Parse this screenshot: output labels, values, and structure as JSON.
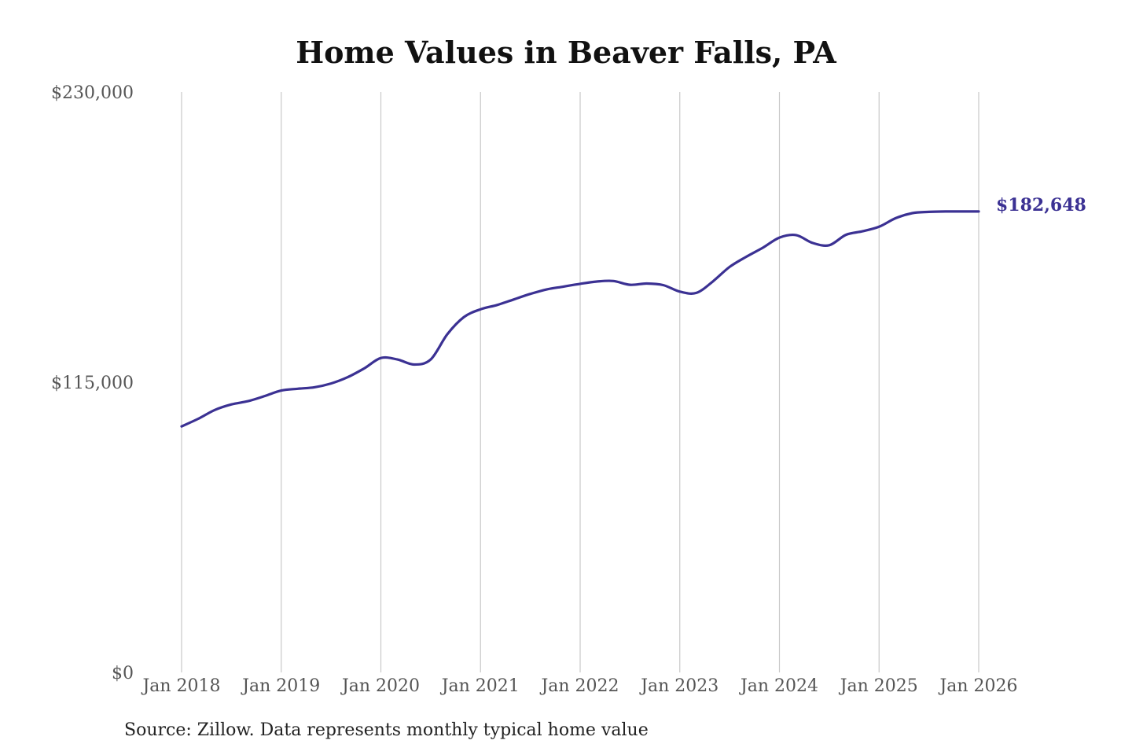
{
  "chart_data": {
    "type": "line",
    "title": "Home Values in Beaver Falls, PA",
    "xlabel": "",
    "ylabel": "",
    "ylim": [
      0,
      230000
    ],
    "y_ticks": [
      {
        "value": 0,
        "label": "$0"
      },
      {
        "value": 115000,
        "label": "$115,000"
      },
      {
        "value": 230000,
        "label": "$230,000"
      }
    ],
    "x_ticks": [
      {
        "value": 2018,
        "label": "Jan 2018"
      },
      {
        "value": 2019,
        "label": "Jan 2019"
      },
      {
        "value": 2020,
        "label": "Jan 2020"
      },
      {
        "value": 2021,
        "label": "Jan 2021"
      },
      {
        "value": 2022,
        "label": "Jan 2022"
      },
      {
        "value": 2023,
        "label": "Jan 2023"
      },
      {
        "value": 2024,
        "label": "Jan 2024"
      },
      {
        "value": 2025,
        "label": "Jan 2025"
      },
      {
        "value": 2026,
        "label": "Jan 2026"
      }
    ],
    "vertical_gridlines": true,
    "line_color": "#3b3193",
    "end_label": "$182,648",
    "series": [
      {
        "x": [
          "2018-01",
          "2018-03",
          "2018-05",
          "2018-07",
          "2018-09",
          "2018-11",
          "2019-01",
          "2019-03",
          "2019-05",
          "2019-07",
          "2019-09",
          "2019-11",
          "2020-01",
          "2020-03",
          "2020-05",
          "2020-07",
          "2020-09",
          "2020-11",
          "2021-01",
          "2021-03",
          "2021-05",
          "2021-07",
          "2021-09",
          "2021-11",
          "2022-01",
          "2022-03",
          "2022-05",
          "2022-07",
          "2022-09",
          "2022-11",
          "2023-01",
          "2023-03",
          "2023-05",
          "2023-07",
          "2023-09",
          "2023-11",
          "2024-01",
          "2024-03",
          "2024-05",
          "2024-07",
          "2024-09",
          "2024-11",
          "2025-01",
          "2025-03",
          "2025-05",
          "2025-07",
          "2025-09",
          "2025-11",
          "2026-01"
        ],
        "y": [
          97500,
          100500,
          104000,
          106200,
          107500,
          109500,
          111700,
          112400,
          113000,
          114500,
          117000,
          120500,
          124600,
          124000,
          122000,
          124000,
          134000,
          140800,
          143900,
          145600,
          147800,
          150000,
          151800,
          152900,
          154000,
          154900,
          155100,
          153600,
          154100,
          153500,
          150900,
          150400,
          155000,
          160700,
          164700,
          168300,
          172300,
          173300,
          170200,
          169300,
          173400,
          174800,
          176600,
          180000,
          182000,
          182500,
          182648,
          182648,
          182648
        ]
      }
    ]
  },
  "source": "Source: Zillow. Data represents monthly typical home value"
}
